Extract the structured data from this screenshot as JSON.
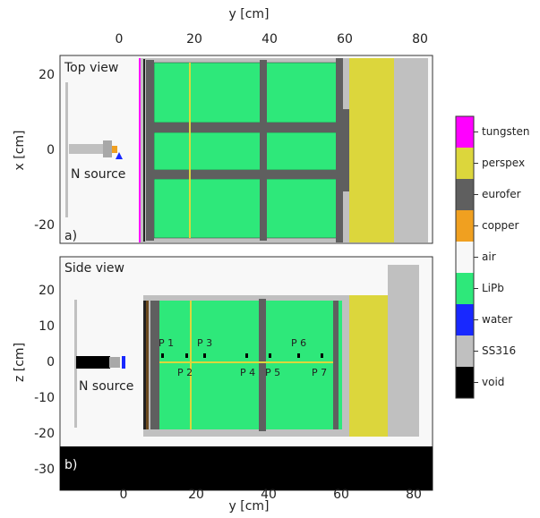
{
  "top_panel": {
    "title": "Top view",
    "panel_label": "a)",
    "source_label": "N source",
    "x_axis_label": "y [cm]",
    "y_axis_label": "x [cm]",
    "x_ticks": [
      0,
      20,
      40,
      60,
      80
    ],
    "y_ticks": [
      20,
      0,
      -20
    ]
  },
  "bottom_panel": {
    "title": "Side view",
    "panel_label": "b)",
    "source_label": "N source",
    "x_axis_label": "y [cm]",
    "y_axis_label": "z [cm]",
    "x_ticks": [
      0,
      20,
      40,
      60,
      80
    ],
    "y_ticks": [
      20,
      10,
      0,
      -10,
      -20,
      -30
    ],
    "probes": [
      "P 1",
      "P 2",
      "P 3",
      "P 4",
      "P 5",
      "P 6",
      "P 7"
    ]
  },
  "legend": [
    {
      "label": "tungsten",
      "color": "#ff00ff"
    },
    {
      "label": "perspex",
      "color": "#dcd63c"
    },
    {
      "label": "eurofer",
      "color": "#5f5f5f"
    },
    {
      "label": "copper",
      "color": "#f0a020"
    },
    {
      "label": "air",
      "color": "#f8f8f8"
    },
    {
      "label": "LiPb",
      "color": "#2ee87a"
    },
    {
      "label": "water",
      "color": "#1828ff"
    },
    {
      "label": "SS316",
      "color": "#c0c0c0"
    },
    {
      "label": "void",
      "color": "#000000"
    }
  ]
}
